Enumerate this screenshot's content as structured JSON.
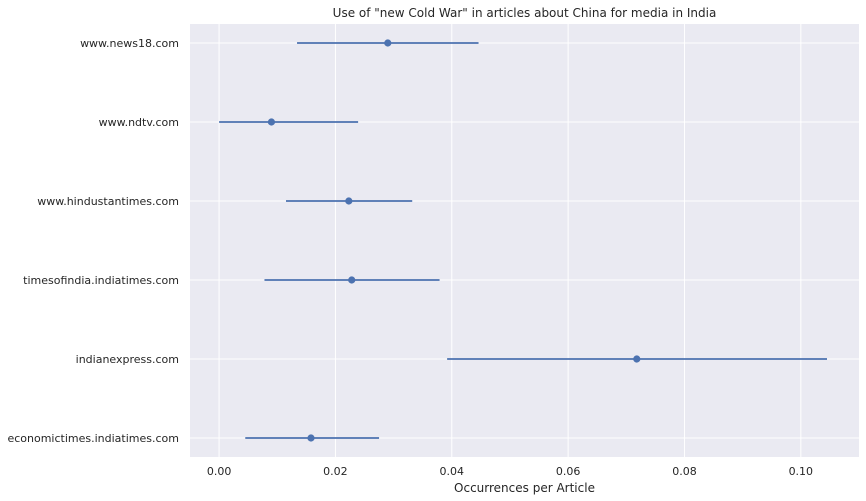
{
  "chart_data": {
    "type": "scatter",
    "subtype": "point-with-error-bars",
    "title": "Use of \"new Cold War\" in articles about China for media in India",
    "xlabel": "Occurrences per Article",
    "ylabel": "",
    "xlim": [
      -0.005,
      0.11
    ],
    "xticks": [
      0.0,
      0.02,
      0.04,
      0.06,
      0.08,
      0.1
    ],
    "xtick_labels": [
      "0.00",
      "0.02",
      "0.04",
      "0.06",
      "0.08",
      "0.10"
    ],
    "grid": true,
    "legend": "none",
    "categories": [
      "www.news18.com",
      "www.ndtv.com",
      "www.hindustantimes.com",
      "timesofindia.indiatimes.com",
      "indianexpress.com",
      "economictimes.indiatimes.com"
    ],
    "series": [
      {
        "values": [
          0.029,
          0.009,
          0.0223,
          0.0228,
          0.0718,
          0.0158
        ],
        "lower": [
          0.0134,
          0.0,
          0.0115,
          0.0078,
          0.0392,
          0.0045
        ],
        "upper": [
          0.0446,
          0.0239,
          0.0332,
          0.0379,
          0.1045,
          0.0275
        ]
      }
    ],
    "colors": {
      "background": "#eaeaf2",
      "grid": "#ffffff",
      "marker": "#4c72b0"
    }
  }
}
